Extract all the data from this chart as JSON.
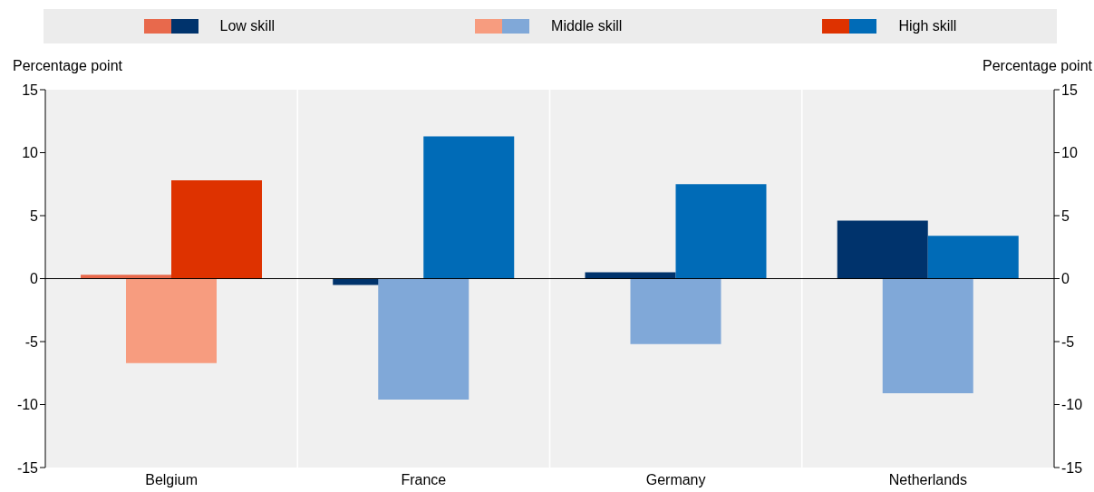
{
  "chart_data": {
    "type": "bar",
    "ylabel": "Percentage point",
    "y2label": "Percentage point",
    "categories": [
      "Belgium",
      "France",
      "Germany",
      "Netherlands"
    ],
    "series": [
      {
        "name": "Low skill",
        "colors": [
          "#e8694c",
          "#00336c",
          "#00336c",
          "#00336c"
        ],
        "values": [
          0.3,
          -0.5,
          0.5,
          4.6
        ]
      },
      {
        "name": "Middle skill",
        "colors": [
          "#f79c7f",
          "#80a8d8",
          "#80a8d8",
          "#80a8d8"
        ],
        "values": [
          -6.7,
          -9.6,
          -5.2,
          -9.1
        ]
      },
      {
        "name": "High skill",
        "colors": [
          "#de3200",
          "#006bb7",
          "#006bb7",
          "#006bb7"
        ],
        "values": [
          7.8,
          11.3,
          7.5,
          3.4
        ]
      }
    ],
    "ylim": [
      -15,
      15
    ],
    "yticks": [
      -15,
      -10,
      -5,
      0,
      5,
      10,
      15
    ],
    "y2lim": [
      -15,
      15
    ],
    "y2ticks": [
      -15,
      -10,
      -5,
      0,
      5,
      10,
      15
    ],
    "grid": "x",
    "legend": "top"
  }
}
